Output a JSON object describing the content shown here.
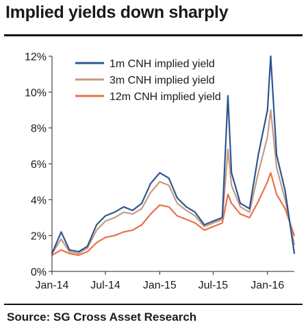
{
  "header": {
    "title": "Implied yields down sharply"
  },
  "footer": {
    "source": "Source: SG Cross Asset Research"
  },
  "colors": {
    "one_month": "#2d5590",
    "three_month": "#c79a84",
    "twelve_month": "#e8704a",
    "axis": "#222222"
  },
  "chart_data": {
    "type": "line",
    "title": "Implied yields down sharply",
    "xlabel": "",
    "ylabel": "",
    "x_ticks": [
      "Jan-14",
      "Jul-14",
      "Jan-15",
      "Jul-15",
      "Jan-16"
    ],
    "y_ticks": [
      "0%",
      "2%",
      "4%",
      "6%",
      "8%",
      "10%",
      "12%"
    ],
    "ylim": [
      0,
      12
    ],
    "xlim": [
      "2014-01",
      "2016-04"
    ],
    "grid": false,
    "legend": "top-center",
    "series": [
      {
        "name": "1m CNH implied yield",
        "color": "#2d5590",
        "points": [
          [
            "2014-01",
            1.0
          ],
          [
            "2014-02",
            2.2
          ],
          [
            "2014-03",
            1.2
          ],
          [
            "2014-04",
            1.1
          ],
          [
            "2014-05",
            1.4
          ],
          [
            "2014-06",
            2.6
          ],
          [
            "2014-07",
            3.1
          ],
          [
            "2014-08",
            3.3
          ],
          [
            "2014-09",
            3.6
          ],
          [
            "2014-10",
            3.4
          ],
          [
            "2014-11",
            3.8
          ],
          [
            "2014-12",
            4.9
          ],
          [
            "2015-01",
            5.5
          ],
          [
            "2015-02",
            5.2
          ],
          [
            "2015-03",
            4.1
          ],
          [
            "2015-04",
            3.6
          ],
          [
            "2015-05",
            3.3
          ],
          [
            "2015-06",
            2.6
          ],
          [
            "2015-07",
            2.8
          ],
          [
            "2015-08",
            3.0
          ],
          [
            "2015-08-20",
            9.8
          ],
          [
            "2015-09",
            5.5
          ],
          [
            "2015-10",
            3.8
          ],
          [
            "2015-11",
            3.5
          ],
          [
            "2015-12",
            6.5
          ],
          [
            "2016-01",
            9.0
          ],
          [
            "2016-01-12",
            12.0
          ],
          [
            "2016-02",
            6.5
          ],
          [
            "2016-03",
            4.5
          ],
          [
            "2016-04",
            1.0
          ]
        ]
      },
      {
        "name": "3m CNH implied yield",
        "color": "#c79a84",
        "points": [
          [
            "2014-01",
            1.0
          ],
          [
            "2014-02",
            1.8
          ],
          [
            "2014-03",
            1.1
          ],
          [
            "2014-04",
            1.0
          ],
          [
            "2014-05",
            1.3
          ],
          [
            "2014-06",
            2.3
          ],
          [
            "2014-07",
            2.8
          ],
          [
            "2014-08",
            3.0
          ],
          [
            "2014-09",
            3.3
          ],
          [
            "2014-10",
            3.2
          ],
          [
            "2014-11",
            3.5
          ],
          [
            "2014-12",
            4.4
          ],
          [
            "2015-01",
            5.0
          ],
          [
            "2015-02",
            4.8
          ],
          [
            "2015-03",
            3.8
          ],
          [
            "2015-04",
            3.4
          ],
          [
            "2015-05",
            3.1
          ],
          [
            "2015-06",
            2.5
          ],
          [
            "2015-07",
            2.7
          ],
          [
            "2015-08",
            2.9
          ],
          [
            "2015-08-20",
            6.8
          ],
          [
            "2015-09",
            4.8
          ],
          [
            "2015-10",
            3.6
          ],
          [
            "2015-11",
            3.3
          ],
          [
            "2015-12",
            5.5
          ],
          [
            "2016-01",
            7.5
          ],
          [
            "2016-01-12",
            9.0
          ],
          [
            "2016-02",
            5.8
          ],
          [
            "2016-03",
            4.0
          ],
          [
            "2016-04",
            1.5
          ]
        ]
      },
      {
        "name": "12m CNH implied yield",
        "color": "#e8704a",
        "points": [
          [
            "2014-01",
            0.9
          ],
          [
            "2014-02",
            1.2
          ],
          [
            "2014-03",
            1.0
          ],
          [
            "2014-04",
            0.9
          ],
          [
            "2014-05",
            1.1
          ],
          [
            "2014-06",
            1.6
          ],
          [
            "2014-07",
            1.9
          ],
          [
            "2014-08",
            2.0
          ],
          [
            "2014-09",
            2.2
          ],
          [
            "2014-10",
            2.3
          ],
          [
            "2014-11",
            2.6
          ],
          [
            "2014-12",
            3.2
          ],
          [
            "2015-01",
            3.7
          ],
          [
            "2015-02",
            3.6
          ],
          [
            "2015-03",
            3.1
          ],
          [
            "2015-04",
            2.9
          ],
          [
            "2015-05",
            2.7
          ],
          [
            "2015-06",
            2.3
          ],
          [
            "2015-07",
            2.5
          ],
          [
            "2015-08",
            2.7
          ],
          [
            "2015-08-20",
            4.3
          ],
          [
            "2015-09",
            3.8
          ],
          [
            "2015-10",
            3.2
          ],
          [
            "2015-11",
            3.0
          ],
          [
            "2015-12",
            3.9
          ],
          [
            "2016-01",
            5.0
          ],
          [
            "2016-01-12",
            5.5
          ],
          [
            "2016-02",
            4.3
          ],
          [
            "2016-03",
            3.5
          ],
          [
            "2016-04",
            2.0
          ]
        ]
      }
    ]
  }
}
